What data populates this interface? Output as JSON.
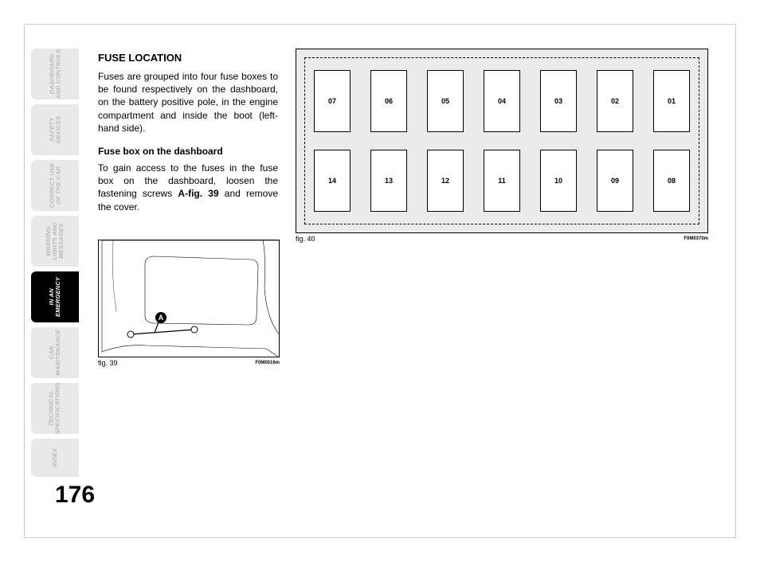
{
  "tabs": [
    {
      "label": "DASHBOARD\nAND CONTROLS",
      "active": false
    },
    {
      "label": "SAFETY\nDEVICES",
      "active": false
    },
    {
      "label": "CORRECT USE\nOF THE CAR",
      "active": false
    },
    {
      "label": "WARNING\nLIGHTS AND\nMESSAGES",
      "active": false
    },
    {
      "label": "IN AN\nEMERGENCY",
      "active": true
    },
    {
      "label": "CAR\nMAINTENANCE",
      "active": false
    },
    {
      "label": "TECHNICAL\nSPECIFICATIONS",
      "active": false
    },
    {
      "label": "INDEX",
      "active": false,
      "short": true
    }
  ],
  "content": {
    "heading": "FUSE LOCATION",
    "p1": "Fuses are grouped into four fuse boxes to be found respectively on the dashboard, on the battery positive pole, in the engine compartment and inside the boot (left-hand side).",
    "sub": "Fuse box on the dashboard",
    "p2_pre": "To gain access to the fuses in the fuse box on the dashboard, loosen the fastening screws ",
    "p2_bold": "A-fig. 39",
    "p2_post": " and remove the cover."
  },
  "fig39": {
    "label": "fig. 39",
    "code": "F0M0016m",
    "marker": "A",
    "stroke": "#000000",
    "bg": "#ffffff"
  },
  "fig40": {
    "label": "fig. 40",
    "code": "F0M0370m",
    "bg": "#ebebeb",
    "fuse_bg": "#ffffff",
    "border": "#000000",
    "rows": [
      [
        "07",
        "06",
        "05",
        "04",
        "03",
        "02",
        "01"
      ],
      [
        "14",
        "13",
        "12",
        "11",
        "10",
        "09",
        "08"
      ]
    ]
  },
  "page_number": "176",
  "colors": {
    "tab_inactive_bg": "#e9e9e9",
    "tab_inactive_text": "#b9b9b9",
    "tab_active_bg": "#000000",
    "tab_active_text": "#ffffff"
  }
}
